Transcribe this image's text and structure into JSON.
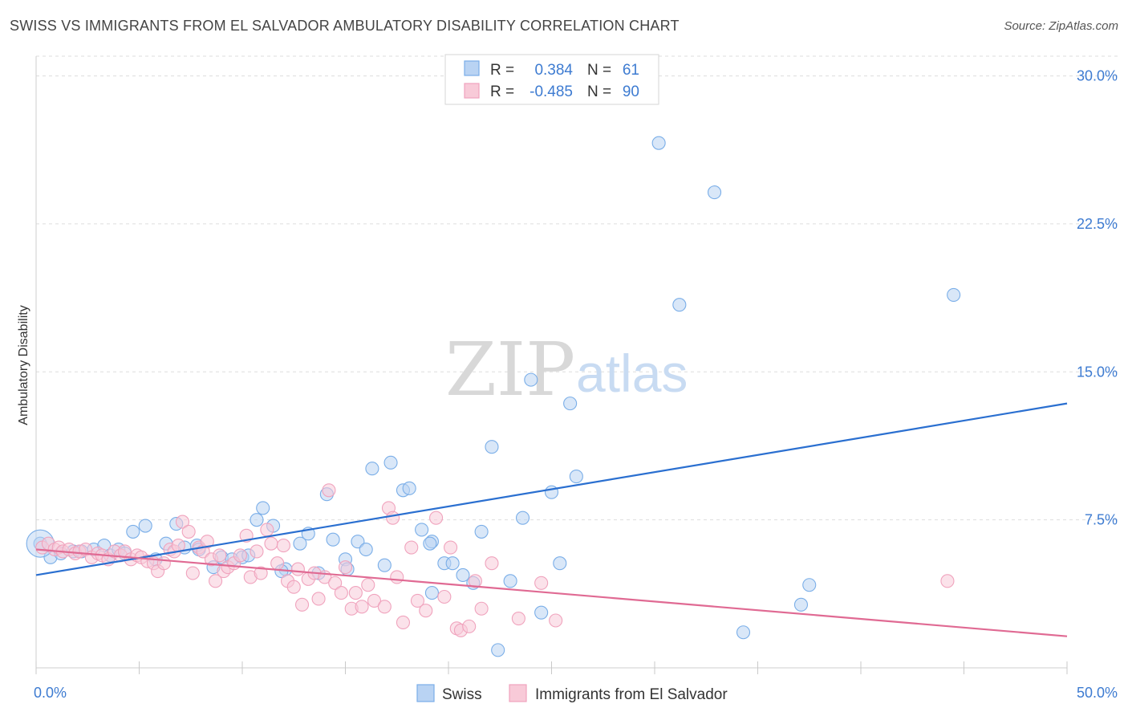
{
  "header": {
    "title": "SWISS VS IMMIGRANTS FROM EL SALVADOR AMBULATORY DISABILITY CORRELATION CHART",
    "source": "Source: ZipAtlas.com"
  },
  "watermark": {
    "zip": "ZIP",
    "atlas": "atlas"
  },
  "chart_data": {
    "type": "scatter",
    "title": "SWISS VS IMMIGRANTS FROM EL SALVADOR AMBULATORY DISABILITY CORRELATION CHART",
    "xlabel": "",
    "ylabel": "Ambulatory Disability",
    "xlim": [
      0,
      50
    ],
    "ylim": [
      0,
      31
    ],
    "x_tick_labels": [
      "0.0%",
      "50.0%"
    ],
    "y_ticks": [
      7.5,
      15.0,
      22.5,
      30.0
    ],
    "y_tick_labels": [
      "7.5%",
      "15.0%",
      "22.5%",
      "30.0%"
    ],
    "grid": true,
    "legend_position": "top-center",
    "stats": [
      {
        "r_label": "R =",
        "r_value": "0.384",
        "n_label": "N =",
        "n_value": "61"
      },
      {
        "r_label": "R =",
        "r_value": "-0.485",
        "n_label": "N =",
        "n_value": "90"
      }
    ],
    "series": [
      {
        "name": "Swiss",
        "color": "#7aaee8",
        "fill": "#b9d3f3",
        "line_color": "#2a6fd0",
        "trend": {
          "x0": 0,
          "y0": 4.7,
          "x1": 50,
          "y1": 13.4
        },
        "points": [
          [
            0.2,
            6.3
          ],
          [
            0.7,
            5.6
          ],
          [
            1.2,
            5.8
          ],
          [
            1.8,
            5.9
          ],
          [
            2.2,
            5.9
          ],
          [
            2.8,
            6.0
          ],
          [
            3.3,
            6.2
          ],
          [
            3.6,
            5.7
          ],
          [
            4.0,
            6.0
          ],
          [
            4.3,
            5.8
          ],
          [
            4.7,
            6.9
          ],
          [
            5.3,
            7.2
          ],
          [
            5.8,
            5.5
          ],
          [
            6.3,
            6.3
          ],
          [
            6.8,
            7.3
          ],
          [
            7.2,
            6.1
          ],
          [
            7.8,
            6.2
          ],
          [
            7.9,
            6.0
          ],
          [
            8.6,
            5.1
          ],
          [
            9.0,
            5.6
          ],
          [
            9.5,
            5.5
          ],
          [
            10.0,
            5.6
          ],
          [
            10.3,
            5.7
          ],
          [
            10.7,
            7.5
          ],
          [
            11.0,
            8.1
          ],
          [
            11.5,
            7.2
          ],
          [
            12.1,
            5.0
          ],
          [
            11.9,
            4.9
          ],
          [
            12.8,
            6.3
          ],
          [
            13.2,
            6.8
          ],
          [
            13.7,
            4.8
          ],
          [
            14.1,
            8.8
          ],
          [
            14.4,
            6.5
          ],
          [
            15.0,
            5.5
          ],
          [
            15.1,
            5.0
          ],
          [
            15.6,
            6.4
          ],
          [
            16.0,
            6.0
          ],
          [
            16.3,
            10.1
          ],
          [
            16.9,
            5.2
          ],
          [
            17.2,
            10.4
          ],
          [
            17.8,
            9.0
          ],
          [
            18.1,
            9.1
          ],
          [
            18.7,
            7.0
          ],
          [
            19.2,
            6.4
          ],
          [
            19.1,
            6.3
          ],
          [
            19.2,
            3.8
          ],
          [
            19.8,
            5.3
          ],
          [
            20.2,
            5.3
          ],
          [
            20.7,
            4.7
          ],
          [
            21.2,
            4.3
          ],
          [
            21.6,
            6.9
          ],
          [
            22.1,
            11.2
          ],
          [
            22.4,
            0.9
          ],
          [
            23.0,
            4.4
          ],
          [
            23.6,
            7.6
          ],
          [
            24.0,
            14.6
          ],
          [
            24.5,
            2.8
          ],
          [
            25.0,
            8.9
          ],
          [
            25.4,
            5.3
          ],
          [
            25.9,
            13.4
          ],
          [
            26.2,
            9.7
          ],
          [
            30.2,
            26.6
          ],
          [
            31.2,
            18.4
          ],
          [
            32.9,
            24.1
          ],
          [
            34.3,
            1.8
          ],
          [
            37.1,
            3.2
          ],
          [
            37.5,
            4.2
          ],
          [
            44.5,
            18.9
          ]
        ]
      },
      {
        "name": "Immigrants from El Salvador",
        "color": "#f0a3bd",
        "fill": "#f8cad8",
        "line_color": "#e06a93",
        "trend": {
          "x0": 0,
          "y0": 6.0,
          "x1": 50,
          "y1": 1.6
        },
        "points": [
          [
            0.3,
            6.1
          ],
          [
            0.6,
            6.3
          ],
          [
            0.9,
            6.0
          ],
          [
            1.1,
            6.1
          ],
          [
            1.3,
            5.9
          ],
          [
            1.6,
            6.0
          ],
          [
            1.9,
            5.8
          ],
          [
            2.1,
            5.9
          ],
          [
            2.4,
            6.0
          ],
          [
            2.7,
            5.6
          ],
          [
            3.0,
            5.8
          ],
          [
            3.2,
            5.7
          ],
          [
            3.5,
            5.5
          ],
          [
            3.8,
            5.9
          ],
          [
            4.1,
            5.7
          ],
          [
            4.3,
            5.9
          ],
          [
            4.6,
            5.5
          ],
          [
            4.9,
            5.7
          ],
          [
            5.1,
            5.6
          ],
          [
            5.4,
            5.4
          ],
          [
            5.7,
            5.3
          ],
          [
            5.9,
            4.9
          ],
          [
            6.2,
            5.3
          ],
          [
            6.5,
            6.0
          ],
          [
            6.7,
            5.9
          ],
          [
            6.9,
            6.2
          ],
          [
            7.1,
            7.4
          ],
          [
            7.4,
            6.9
          ],
          [
            7.6,
            4.8
          ],
          [
            7.9,
            6.1
          ],
          [
            8.1,
            5.9
          ],
          [
            8.3,
            6.4
          ],
          [
            8.5,
            5.5
          ],
          [
            8.7,
            4.4
          ],
          [
            8.9,
            5.7
          ],
          [
            9.1,
            4.9
          ],
          [
            9.3,
            5.1
          ],
          [
            9.6,
            5.3
          ],
          [
            9.9,
            5.7
          ],
          [
            10.2,
            6.7
          ],
          [
            10.4,
            4.6
          ],
          [
            10.7,
            5.9
          ],
          [
            10.9,
            4.8
          ],
          [
            11.2,
            7.0
          ],
          [
            11.4,
            6.3
          ],
          [
            11.7,
            5.3
          ],
          [
            12.0,
            6.2
          ],
          [
            12.2,
            4.4
          ],
          [
            12.5,
            4.1
          ],
          [
            12.7,
            5.0
          ],
          [
            12.9,
            3.2
          ],
          [
            13.2,
            4.5
          ],
          [
            13.5,
            4.8
          ],
          [
            13.7,
            3.5
          ],
          [
            14.0,
            4.6
          ],
          [
            14.2,
            9.0
          ],
          [
            14.5,
            4.3
          ],
          [
            14.8,
            3.8
          ],
          [
            15.0,
            5.1
          ],
          [
            15.3,
            3.0
          ],
          [
            15.5,
            3.8
          ],
          [
            15.8,
            3.1
          ],
          [
            16.1,
            4.2
          ],
          [
            16.4,
            3.4
          ],
          [
            16.9,
            3.1
          ],
          [
            17.1,
            8.1
          ],
          [
            17.3,
            7.6
          ],
          [
            17.5,
            4.6
          ],
          [
            17.8,
            2.3
          ],
          [
            18.2,
            6.1
          ],
          [
            18.5,
            3.4
          ],
          [
            18.9,
            2.9
          ],
          [
            19.4,
            7.6
          ],
          [
            19.8,
            3.6
          ],
          [
            20.1,
            6.1
          ],
          [
            20.4,
            2.0
          ],
          [
            20.6,
            1.9
          ],
          [
            21.0,
            2.1
          ],
          [
            21.3,
            4.4
          ],
          [
            21.6,
            3.0
          ],
          [
            22.1,
            5.3
          ],
          [
            23.4,
            2.5
          ],
          [
            24.5,
            4.3
          ],
          [
            25.2,
            2.4
          ],
          [
            44.2,
            4.4
          ]
        ]
      }
    ]
  },
  "legend": {
    "swiss": "Swiss",
    "el_salvador": "Immigrants from El Salvador"
  }
}
